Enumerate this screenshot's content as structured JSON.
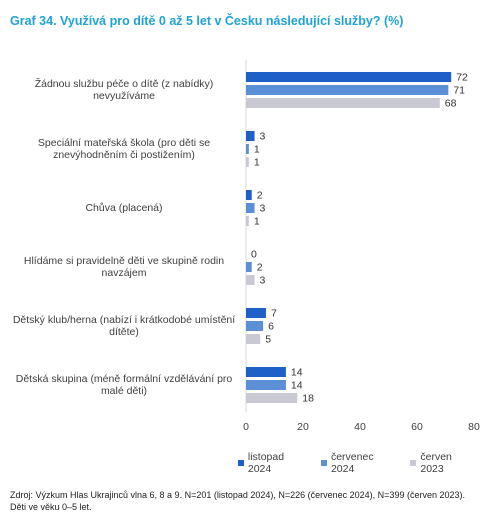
{
  "chart_data": {
    "type": "bar",
    "orientation": "horizontal",
    "title": "Graf 34. Využívá pro dítě 0 až 5 let v Česku následující služby? (%)",
    "categories": [
      "Žádnou službu péče o dítě (z nabídky) nevyužíváme",
      "Speciální mateřská škola (pro děti se znevýhodněním či postižením)",
      "Chůva (placená)",
      "Hlídáme si pravidelně děti ve skupině rodin navzájem",
      "Dětský klub/herna (nabízí i krátkodobé umístění dítěte)",
      "Dětská skupina (méně formální vzdělávání pro malé děti)"
    ],
    "series": [
      {
        "name": "listopad 2024",
        "color": "#1f5fc8",
        "values": [
          72,
          3,
          2,
          0,
          7,
          14
        ]
      },
      {
        "name": "červenec 2024",
        "color": "#5b8fd6",
        "values": [
          71,
          1,
          3,
          2,
          6,
          14
        ]
      },
      {
        "name": "červen 2023",
        "color": "#c9c9d4",
        "values": [
          68,
          1,
          1,
          3,
          5,
          18
        ]
      }
    ],
    "xlim": [
      0,
      80
    ],
    "xticks": [
      "0",
      "20",
      "40",
      "60",
      "80"
    ],
    "grid": false,
    "legend_position": "bottom"
  },
  "source": "Zdroj: Výzkum Hlas Ukrajinců vlna 6, 8 a 9. N=201 (listopad 2024), N=226 (červenec 2024), N=399 (červen 2023). Děti ve věku 0–5 let."
}
